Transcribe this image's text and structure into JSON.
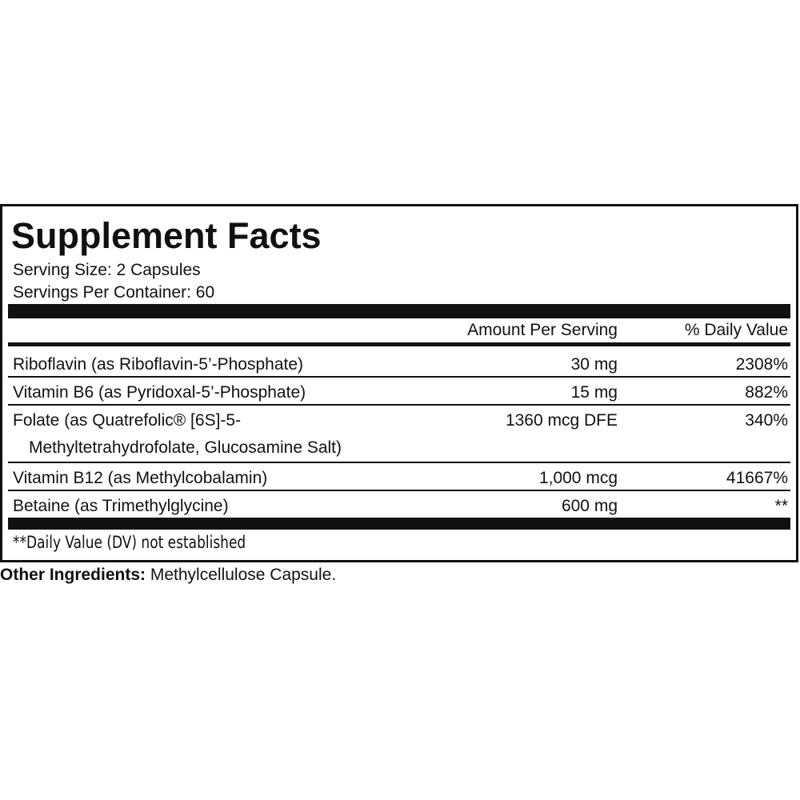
{
  "header": {
    "title": "Supplement Facts",
    "serving_size": "Serving Size: 2 Capsules",
    "servings_per_container": "Servings Per Container: 60"
  },
  "table": {
    "columns": [
      "Amount Per Serving",
      "% Daily Value"
    ],
    "rows": [
      [
        [
          "Riboflavin (as Riboflavin-5’-Phosphate)"
        ],
        "30 mg",
        "2308%"
      ],
      [
        [
          "Vitamin B6 (as Pyridoxal-5’-Phosphate)"
        ],
        "15 mg",
        "882%"
      ],
      [
        [
          "Folate (as Quatrefolic® [6S]-5-",
          "Methyltetrahydrofolate, Glucosamine Salt)"
        ],
        "1360 mcg DFE",
        "340%"
      ],
      [
        [
          "Vitamin B12 (as Methylcobalamin)"
        ],
        "1,000 mcg",
        "41667%"
      ],
      [
        [
          "Betaine (as Trimethylglycine)"
        ],
        "600 mg",
        "**"
      ]
    ]
  },
  "footnote": "**Daily Value (DV) not established",
  "other_ingredients": {
    "label": "Other Ingredients:",
    "text": "Methylcellulose Capsule."
  }
}
